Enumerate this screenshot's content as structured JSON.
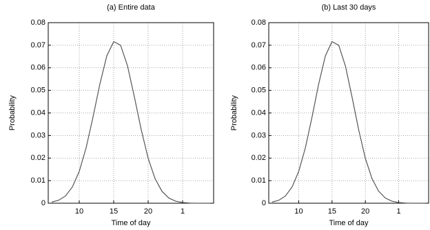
{
  "chart_data": [
    {
      "type": "line",
      "title": "(a) Entire data",
      "x_label": "Time of day",
      "y_label": "Probability",
      "x": [
        6,
        7,
        8,
        9,
        10,
        11,
        12,
        13,
        14,
        15,
        16,
        17,
        18,
        19,
        20,
        21,
        22,
        23,
        24,
        25,
        26,
        27,
        28,
        29
      ],
      "series": [
        {
          "name": "Probability",
          "color": "#555555",
          "values": [
            0.0005,
            0.0013,
            0.0032,
            0.0072,
            0.0141,
            0.0246,
            0.0382,
            0.0529,
            0.0653,
            0.0716,
            0.07,
            0.0609,
            0.0471,
            0.0325,
            0.0199,
            0.0109,
            0.0053,
            0.0023,
            0.0009,
            0.0003,
            0.0001,
            0,
            0,
            0
          ]
        }
      ],
      "xlim": [
        5.5,
        29.5
      ],
      "xticks": [
        10,
        15,
        20,
        {
          "value": 25,
          "label": "1"
        }
      ],
      "ylim": [
        0,
        0.08
      ],
      "yticks": [
        0,
        0.01,
        0.02,
        0.03,
        0.04,
        0.05,
        0.06,
        0.07,
        0.08
      ],
      "grid": true
    },
    {
      "type": "line",
      "title": "(b) Last 30 days",
      "x_label": "Time of day",
      "y_label": "Probability",
      "x": [
        6,
        7,
        8,
        9,
        10,
        11,
        12,
        13,
        14,
        15,
        16,
        17,
        18,
        19,
        20,
        21,
        22,
        23,
        24,
        25,
        26,
        27,
        28,
        29
      ],
      "series": [
        {
          "name": "Probability",
          "color": "#555555",
          "values": [
            0.0005,
            0.0013,
            0.0032,
            0.0072,
            0.0141,
            0.0246,
            0.0382,
            0.0529,
            0.0653,
            0.0716,
            0.07,
            0.0609,
            0.0471,
            0.0325,
            0.0199,
            0.0109,
            0.0053,
            0.0023,
            0.0009,
            0.0003,
            0.0001,
            0,
            0,
            0
          ]
        }
      ],
      "xlim": [
        5.5,
        29.5
      ],
      "xticks": [
        10,
        15,
        20,
        {
          "value": 25,
          "label": "1"
        }
      ],
      "ylim": [
        0,
        0.08
      ],
      "yticks": [
        0,
        0.01,
        0.02,
        0.03,
        0.04,
        0.05,
        0.06,
        0.07,
        0.08
      ],
      "grid": true
    }
  ]
}
